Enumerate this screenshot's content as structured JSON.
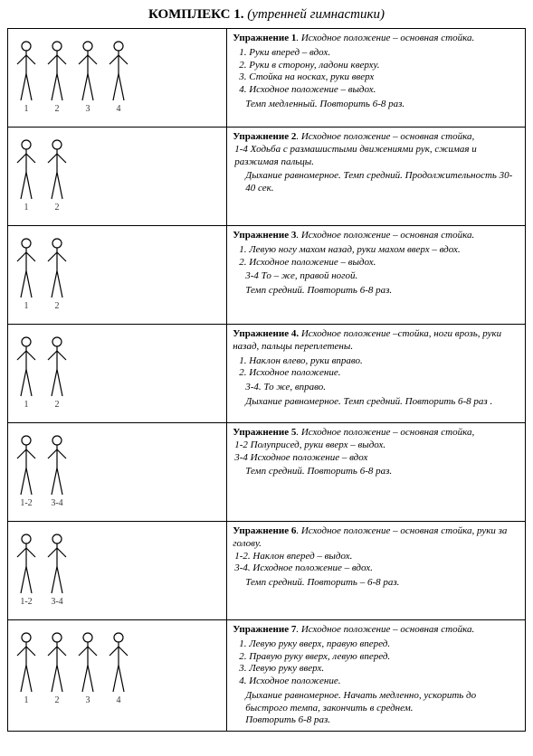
{
  "title_bold": "КОМПЛЕКС 1.",
  "title_ital": "(утренней гимнастики)",
  "exercises": [
    {
      "fig_labels": [
        "1",
        "2",
        "3",
        "4"
      ],
      "head": "Упражнение 1",
      "intro": ". Исходное положение – основная стойка.",
      "steps": [
        "Руки вперед – вдох.",
        "Руки в сторону, ладони кверху.",
        "Стойка на носках, руки вверх",
        "Исходное положение – выдох."
      ],
      "tail": "Темп медленный. Повторить 6-8 раз."
    },
    {
      "fig_labels": [
        "1",
        "2"
      ],
      "head": "Упражнение 2",
      "intro": ". Исходное положение – основная стойка,",
      "body": "1-4  Ходьба с размашистыми движениями рук, сжимая и разжимая пальцы.",
      "tail": "Дыхание      равномерное.      Темп      средний. Продолжительность 30-40 сек."
    },
    {
      "fig_labels": [
        "1",
        "2"
      ],
      "head": "Упражнение 3",
      "intro": ". Исходное положение – основная стойка.",
      "steps": [
        "Левую ногу махом назад, руки махом вверх – вдох.",
        "Исходное положение – выдох."
      ],
      "extra": "3-4 То – же, правой ногой.",
      "tail": "Темп средний. Повторить 6-8 раз."
    },
    {
      "fig_labels": [
        "1",
        "2"
      ],
      "head": "Упражнение 4.",
      "intro": " Исходное положение –стойка, ноги врозь, руки назад, пальцы переплетены.",
      "steps": [
        "Наклон влево, руки вправо.",
        "Исходное положение."
      ],
      "extra": "3-4. То же, вправо.",
      "tail": "Дыхание равномерное. Темп средний. Повторить 6-8 раз ."
    },
    {
      "fig_labels": [
        "1-2",
        "3-4"
      ],
      "head": "Упражнение 5",
      "intro": ". Исходное положение – основная стойка,",
      "body": "1-2 Полуприсед, руки вверх – выдох.\n3-4 Исходное положение – вдох",
      "tail": "Темп средний. Повторить 6-8 раз."
    },
    {
      "fig_labels": [
        "1-2",
        "3-4"
      ],
      "head": "Упражнение 6",
      "intro": ". Исходное положение – основная стойка, руки за голову.",
      "body": "1-2. Наклон вперед – выдох.\n3-4. Исходное положение – вдох.",
      "tail": "Темп средний. Повторить – 6-8 раз."
    },
    {
      "fig_labels": [
        "1",
        "2",
        "3",
        "4"
      ],
      "head": "Упражнение 7",
      "intro": ". Исходное положение – основная стойка.",
      "steps": [
        "Левую руку вверх, правую вперед.",
        "Правую руку вверх, левую вперед.",
        "Левую руку вверх.",
        "Исходное положение."
      ],
      "tail": "Дыхание равномерное. Начать медленно, ускорить до быстрого темпа, закончить в среднем.\nПовторить 6-8 раз."
    }
  ]
}
